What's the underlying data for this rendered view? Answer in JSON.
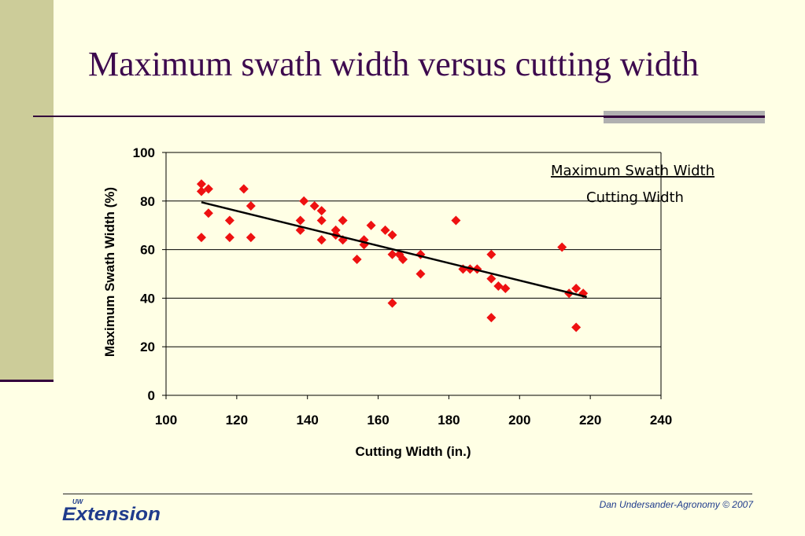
{
  "slide": {
    "title": "Maximum swath width versus cutting width",
    "credit": "Dan  Undersander-Agronomy © 2007",
    "logo": {
      "prefix": "UW",
      "word": "Extension"
    }
  },
  "colors": {
    "points": "#EE1111",
    "title": "#3D0A4E",
    "sidebar": "#CCCC99",
    "background": "#FFFFE5"
  },
  "chart_data": {
    "type": "scatter",
    "xlabel": "Cutting Width (in.)",
    "ylabel": "Maximum Swath Width (%)",
    "xlim": [
      100,
      240
    ],
    "ylim": [
      0,
      100
    ],
    "xticks": [
      100,
      120,
      140,
      160,
      180,
      200,
      220,
      240
    ],
    "yticks": [
      0,
      20,
      40,
      60,
      80,
      100
    ],
    "grid": "horizontal",
    "annotation": {
      "numerator": "Maximum Swath Width",
      "denominator": "Cutting Width"
    },
    "trendline": {
      "x": [
        110,
        219
      ],
      "y": [
        79.5,
        40.5
      ]
    },
    "points": [
      {
        "x": 110,
        "y": 87
      },
      {
        "x": 110,
        "y": 84
      },
      {
        "x": 112,
        "y": 85
      },
      {
        "x": 112,
        "y": 75
      },
      {
        "x": 110,
        "y": 65
      },
      {
        "x": 118,
        "y": 72
      },
      {
        "x": 118,
        "y": 65
      },
      {
        "x": 122,
        "y": 85
      },
      {
        "x": 124,
        "y": 78
      },
      {
        "x": 124,
        "y": 65
      },
      {
        "x": 138,
        "y": 72
      },
      {
        "x": 138,
        "y": 68
      },
      {
        "x": 139,
        "y": 80
      },
      {
        "x": 142,
        "y": 78
      },
      {
        "x": 144,
        "y": 76
      },
      {
        "x": 144,
        "y": 72
      },
      {
        "x": 144,
        "y": 64
      },
      {
        "x": 148,
        "y": 68
      },
      {
        "x": 148,
        "y": 66
      },
      {
        "x": 150,
        "y": 72
      },
      {
        "x": 150,
        "y": 64
      },
      {
        "x": 154,
        "y": 56
      },
      {
        "x": 156,
        "y": 64
      },
      {
        "x": 156,
        "y": 62
      },
      {
        "x": 158,
        "y": 70
      },
      {
        "x": 162,
        "y": 68
      },
      {
        "x": 164,
        "y": 66
      },
      {
        "x": 164,
        "y": 58
      },
      {
        "x": 164,
        "y": 38
      },
      {
        "x": 166,
        "y": 58
      },
      {
        "x": 167,
        "y": 56
      },
      {
        "x": 172,
        "y": 58
      },
      {
        "x": 172,
        "y": 50
      },
      {
        "x": 182,
        "y": 72
      },
      {
        "x": 184,
        "y": 52
      },
      {
        "x": 186,
        "y": 52
      },
      {
        "x": 188,
        "y": 52
      },
      {
        "x": 192,
        "y": 58
      },
      {
        "x": 192,
        "y": 48
      },
      {
        "x": 192,
        "y": 32
      },
      {
        "x": 194,
        "y": 45
      },
      {
        "x": 196,
        "y": 44
      },
      {
        "x": 212,
        "y": 61
      },
      {
        "x": 214,
        "y": 42
      },
      {
        "x": 216,
        "y": 44
      },
      {
        "x": 216,
        "y": 28
      },
      {
        "x": 218,
        "y": 42
      }
    ]
  }
}
